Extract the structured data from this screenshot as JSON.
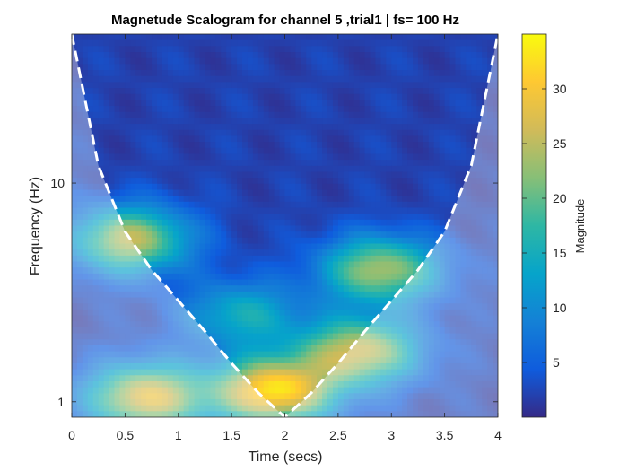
{
  "chart_data": {
    "type": "heatmap",
    "title": "Magnetude Scalogram for channel 5 ,trial1 | fs= 100 Hz",
    "xlabel": "Time (secs)",
    "ylabel": "Frequency (Hz)",
    "xlim": [
      0,
      4
    ],
    "ylim": [
      0.85,
      48
    ],
    "yscale": "log",
    "x_ticks": [
      0,
      0.5,
      1,
      1.5,
      2,
      2.5,
      3,
      3.5,
      4
    ],
    "x_tick_labels": [
      "0",
      "0.5",
      "1",
      "1.5",
      "2",
      "2.5",
      "3",
      "3.5",
      "4"
    ],
    "y_ticks": [
      1,
      10
    ],
    "y_tick_labels": [
      "1",
      "10"
    ],
    "colorbar": {
      "label": "Magnitude",
      "range": [
        0,
        35
      ],
      "ticks": [
        5,
        10,
        15,
        20,
        25,
        30
      ],
      "tick_labels": [
        "5",
        "10",
        "15",
        "20",
        "25",
        "30"
      ],
      "colormap": "parula"
    },
    "cone_of_influence": {
      "style": "dashed",
      "color": "#ffffff",
      "points": [
        [
          0,
          48
        ],
        [
          0.25,
          12
        ],
        [
          0.5,
          6
        ],
        [
          0.75,
          4
        ],
        [
          1.0,
          2.9
        ],
        [
          1.25,
          2.1
        ],
        [
          1.5,
          1.5
        ],
        [
          1.75,
          1.1
        ],
        [
          2.0,
          0.85
        ],
        [
          2.25,
          1.1
        ],
        [
          2.5,
          1.5
        ],
        [
          2.75,
          2.1
        ],
        [
          3.0,
          2.9
        ],
        [
          3.25,
          4
        ],
        [
          3.5,
          6
        ],
        [
          3.75,
          12
        ],
        [
          4.0,
          48
        ]
      ]
    },
    "hotspots": [
      {
        "t": 1.9,
        "f": 1.12,
        "magnitude": 33
      },
      {
        "t": 0.7,
        "f": 1.05,
        "magnitude": 28
      },
      {
        "t": 2.7,
        "f": 1.7,
        "magnitude": 26
      },
      {
        "t": 0.55,
        "f": 5.5,
        "magnitude": 25
      },
      {
        "t": 2.9,
        "f": 4.0,
        "magnitude": 24
      },
      {
        "t": 1.6,
        "f": 2.5,
        "magnitude": 15
      }
    ],
    "background_magnitude": 2
  }
}
